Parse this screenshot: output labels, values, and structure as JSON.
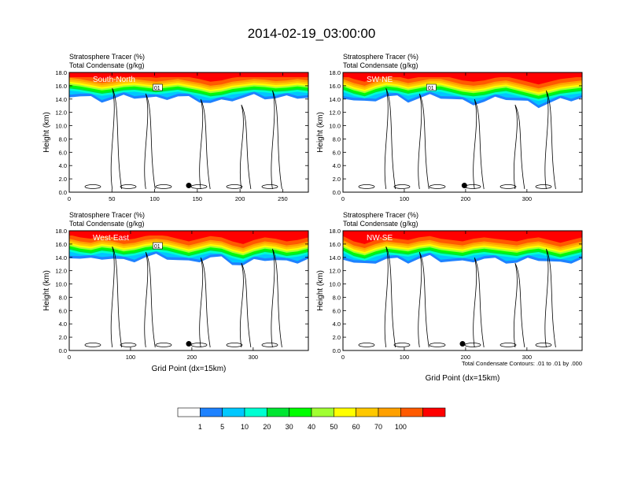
{
  "title": "2014-02-19_03:00:00",
  "colors": [
    "#ffffff",
    "#1e82ff",
    "#00c8ff",
    "#00ffd2",
    "#00e632",
    "#00ff00",
    "#a0ff32",
    "#ffff00",
    "#ffc800",
    "#ffa000",
    "#ff5a00",
    "#ff0000"
  ],
  "chart_data": [
    {
      "type": "heatmap",
      "panel_label": "South-North",
      "left_title_1": "Stratosphere Tracer   (%)",
      "left_title_2": "Total Condensate   (g/kg)",
      "ylabel": "Height (km)",
      "xlabel": "",
      "xlim": [
        0,
        280
      ],
      "ylim": [
        0,
        18
      ],
      "xticks": [
        0,
        50,
        100,
        150,
        200,
        250
      ],
      "yticks": [
        0,
        2,
        4,
        6,
        8,
        10,
        12,
        14,
        16,
        18
      ],
      "tracer_top_km": [
        16.8,
        16.6,
        16.3,
        16.0,
        16.2,
        16.5,
        16.6,
        16.4,
        16.2,
        16.4,
        16.6,
        16.3,
        16.0,
        15.6,
        15.8,
        16.2,
        16.4,
        16.6,
        16.5,
        16.3,
        16.4,
        16.6,
        16.4
      ],
      "contour_label": "01",
      "marker": {
        "x": 140,
        "y": 1.0
      }
    },
    {
      "type": "heatmap",
      "panel_label": "SW-NE",
      "left_title_1": "Stratosphere Tracer   (%)",
      "left_title_2": "Total Condensate   (g/kg)",
      "ylabel": "Height (km)",
      "xlabel": "",
      "xlim": [
        0,
        390
      ],
      "ylim": [
        0,
        18
      ],
      "xticks": [
        0,
        100,
        200,
        300
      ],
      "yticks": [
        0,
        2,
        4,
        6,
        8,
        10,
        12,
        14,
        16,
        18
      ],
      "tracer_top_km": [
        16.6,
        16.0,
        15.6,
        16.2,
        16.6,
        16.4,
        16.0,
        16.3,
        16.6,
        16.6,
        16.2,
        15.8,
        15.6,
        15.8,
        16.2,
        16.4,
        16.0,
        15.6,
        15.2,
        15.6,
        16.0,
        16.2,
        16.4
      ],
      "contour_label": "01",
      "marker": {
        "x": 198,
        "y": 1.0
      }
    },
    {
      "type": "heatmap",
      "panel_label": "West-East",
      "left_title_1": "Stratosphere Tracer   (%)",
      "left_title_2": "Total Condensate   (g/kg)",
      "ylabel": "Height (km)",
      "xlabel": "Grid Point (dx=15km)",
      "xlim": [
        0,
        390
      ],
      "ylim": [
        0,
        18
      ],
      "xticks": [
        0,
        100,
        200,
        300
      ],
      "yticks": [
        0,
        2,
        4,
        6,
        8,
        10,
        12,
        14,
        16,
        18
      ],
      "tracer_top_km": [
        16.4,
        16.0,
        15.8,
        16.2,
        16.0,
        15.6,
        15.8,
        16.2,
        16.4,
        16.2,
        15.8,
        15.4,
        15.8,
        16.2,
        16.0,
        15.4,
        15.0,
        15.6,
        16.0,
        15.8,
        15.4,
        15.6,
        16.0
      ],
      "contour_label": "01",
      "marker": {
        "x": 195,
        "y": 1.0
      }
    },
    {
      "type": "heatmap",
      "panel_label": "NW-SE",
      "left_title_1": "Stratosphere Tracer   (%)",
      "left_title_2": "Total Condensate   (g/kg)",
      "ylabel": "Height (km)",
      "xlabel": "Grid Point (dx=15km)",
      "xlim": [
        0,
        390
      ],
      "ylim": [
        0,
        18
      ],
      "xticks": [
        0,
        100,
        200,
        300
      ],
      "yticks": [
        0,
        2,
        4,
        6,
        8,
        10,
        12,
        14,
        16,
        18
      ],
      "tracer_top_km": [
        16.2,
        15.4,
        15.0,
        15.6,
        16.0,
        15.8,
        15.6,
        16.0,
        16.2,
        15.8,
        15.6,
        15.4,
        15.8,
        16.0,
        15.8,
        15.6,
        15.4,
        15.8,
        16.0,
        15.6,
        15.2,
        15.6,
        16.0
      ],
      "contour_label": "",
      "marker": {
        "x": 195,
        "y": 1.0
      },
      "footnote": "Total Condensate Contours: .01 to .01 by .000"
    }
  ],
  "colorbar": {
    "labels": [
      "1",
      "5",
      "10",
      "20",
      "30",
      "40",
      "50",
      "60",
      "70",
      "100"
    ]
  }
}
